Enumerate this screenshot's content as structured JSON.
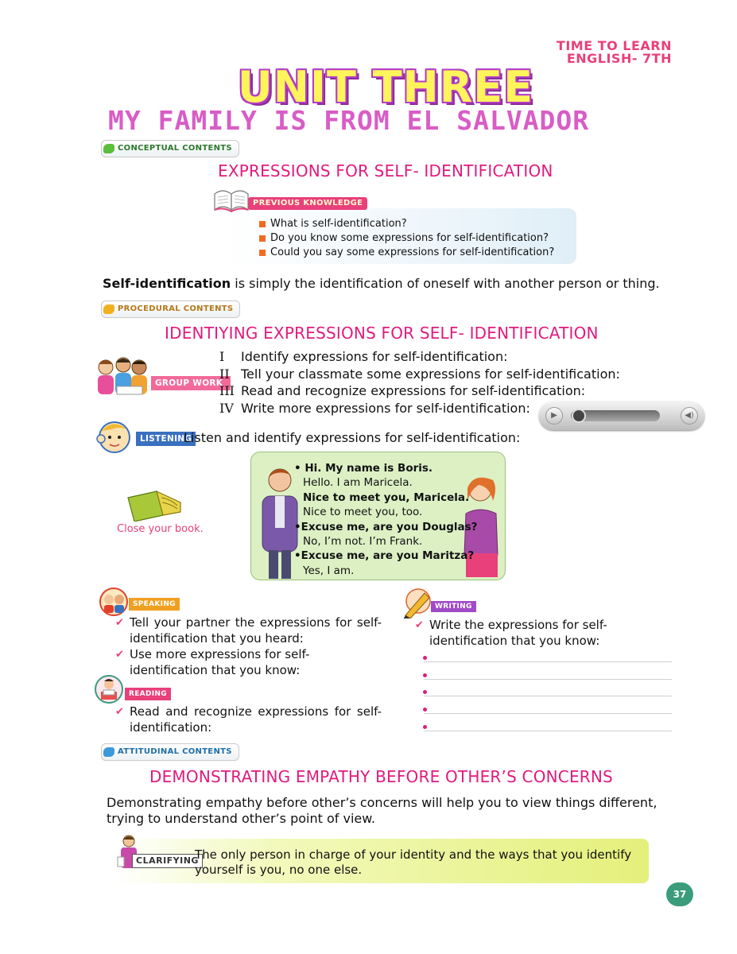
{
  "header": {
    "series_line1": "TIME TO LEARN",
    "series_line2": "ENGLISH- 7TH",
    "unit": "UNIT THREE",
    "subtitle": "MY FAMILY IS FROM EL SALVADOR"
  },
  "tags": {
    "conceptual": "CONCEPTUAL CONTENTS",
    "procedural": "PROCEDURAL CONTENTS",
    "attitudinal": "ATTITUDINAL CONTENTS"
  },
  "colors": {
    "pink": "#e21a7d",
    "orange": "#f26a22",
    "conceptual": "#5bbf3c",
    "procedural": "#f0b020",
    "attitudinal": "#3d9ad8"
  },
  "conceptual": {
    "heading": "EXPRESSIONS FOR SELF- IDENTIFICATION",
    "previous_label": "PREVIOUS KNOWLEDGE",
    "questions": [
      "What is self-identification?",
      "Do you know some expressions for self-identification?",
      "Could you say some expressions for self-identification?"
    ],
    "definition_term": "Self-identification",
    "definition_rest": " is simply the identification of oneself with another person or thing."
  },
  "procedural": {
    "heading": "IDENTIYING EXPRESSIONS FOR SELF- IDENTIFICATION",
    "group_work_label": "GROUP WORK",
    "steps": [
      {
        "num": "I",
        "text": "Identify expressions for self-identification:"
      },
      {
        "num": "II",
        "text": "Tell your classmate some expressions for self-identification:"
      },
      {
        "num": "III",
        "text": "Read and recognize expressions for self-identification:"
      },
      {
        "num": "IV",
        "text": "Write more expressions for self-identification:"
      }
    ],
    "listening_label": "LISTENING",
    "listening_text": "Listen and identify expressions for self-identification:",
    "close_book": "Close your book.",
    "dialogue": [
      {
        "text": "• Hi. My name is Boris.",
        "bold": true
      },
      {
        "text": "Hello. I am Maricela.",
        "bold": false
      },
      {
        "text": "Nice to meet you, Maricela.",
        "bold": true
      },
      {
        "text": "Nice to meet you, too.",
        "bold": false
      },
      {
        "text": "•Excuse me, are you Douglas?",
        "bold": true
      },
      {
        "text": "No, I’m not. I’m Frank.",
        "bold": false
      },
      {
        "text": "•Excuse me, are you Maritza?",
        "bold": true
      },
      {
        "text": "Yes, I am.",
        "bold": false
      }
    ],
    "speaking_label": "SPEAKING",
    "speaking_items": [
      "Tell your partner the expressions for self-identification that you heard:",
      "Use more expressions for self-identification that you know:"
    ],
    "reading_label": "READING",
    "reading_items": [
      "Read and recognize expressions for self-identification:"
    ],
    "writing_label": "WRITING",
    "writing_items": [
      "Write the expressions for self-identification that you know:"
    ]
  },
  "attitudinal": {
    "heading": "DEMONSTRATING EMPATHY BEFORE OTHER’S CONCERNS",
    "paragraph": "Demonstrating empathy before other’s concerns will help you to view things different, trying to understand other’s point of view.",
    "clarifying_label": "CLARIFYING",
    "clarifying_text": "The only person in charge of your identity and the ways that you identify yourself is you, no one else."
  },
  "page_number": "37"
}
